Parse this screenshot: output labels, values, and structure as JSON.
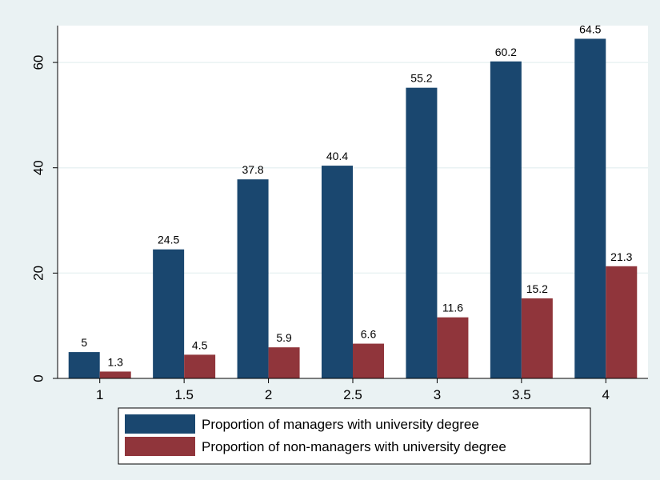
{
  "chart_data": {
    "type": "bar",
    "title": "",
    "xlabel": "",
    "ylabel": "",
    "categories": [
      "1",
      "1.5",
      "2",
      "2.5",
      "3",
      "3.5",
      "4"
    ],
    "series": [
      {
        "name": "Proportion of managers with university degree",
        "color": "#1a476f",
        "values": [
          5,
          24.5,
          37.8,
          40.4,
          55.2,
          60.2,
          64.5
        ],
        "labels": [
          "5",
          "24.5",
          "37.8",
          "40.4",
          "55.2",
          "60.2",
          "64.5"
        ]
      },
      {
        "name": "Proportion of non-managers with university degree",
        "color": "#90353b",
        "values": [
          1.3,
          4.5,
          5.9,
          6.6,
          11.6,
          15.2,
          21.3
        ],
        "labels": [
          "1.3",
          "4.5",
          "5.9",
          "6.6",
          "11.6",
          "15.2",
          "21.3"
        ]
      }
    ],
    "ylim": [
      0,
      67
    ],
    "yticks": [
      0,
      20,
      40,
      60
    ],
    "grid": true,
    "legend_position": "bottom",
    "colors": {
      "outer_background": "#eaf2f3",
      "plot_background": "#ffffff",
      "gridline": "#eaf2f3"
    }
  }
}
